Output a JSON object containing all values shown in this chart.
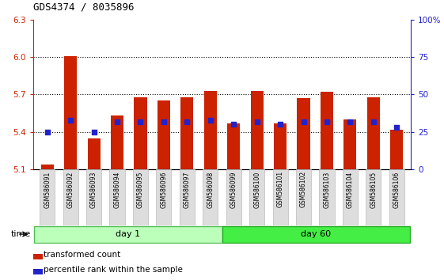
{
  "title": "GDS4374 / 8035896",
  "samples": [
    "GSM586091",
    "GSM586092",
    "GSM586093",
    "GSM586094",
    "GSM586095",
    "GSM586096",
    "GSM586097",
    "GSM586098",
    "GSM586099",
    "GSM586100",
    "GSM586101",
    "GSM586102",
    "GSM586103",
    "GSM586104",
    "GSM586105",
    "GSM586106"
  ],
  "bar_values": [
    5.14,
    6.01,
    5.35,
    5.53,
    5.68,
    5.65,
    5.68,
    5.73,
    5.47,
    5.73,
    5.47,
    5.67,
    5.72,
    5.5,
    5.68,
    5.42
  ],
  "percentile_values": [
    25,
    33,
    25,
    32,
    32,
    32,
    32,
    33,
    30,
    32,
    30,
    32,
    32,
    32,
    32,
    28
  ],
  "ylim_left": [
    5.1,
    6.3
  ],
  "ylim_right": [
    0,
    100
  ],
  "yticks_left": [
    5.1,
    5.4,
    5.7,
    6.0,
    6.3
  ],
  "yticks_right": [
    0,
    25,
    50,
    75,
    100
  ],
  "bar_color": "#cc2200",
  "dot_color": "#2222cc",
  "bar_bottom": 5.1,
  "axis_left_color": "#cc2200",
  "axis_right_color": "#2222cc",
  "day1_color_light": "#bbffbb",
  "day1_color_border": "#55bb55",
  "day60_color_light": "#44ee44",
  "day60_color_border": "#22aa22",
  "legend_items": [
    "transformed count",
    "percentile rank within the sample"
  ],
  "bar_width": 0.55,
  "xlim": [
    -0.6,
    15.6
  ],
  "grid_dotted_at": [
    5.4,
    5.7,
    6.0
  ],
  "day1_range": [
    0,
    7
  ],
  "day60_range": [
    8,
    15
  ]
}
